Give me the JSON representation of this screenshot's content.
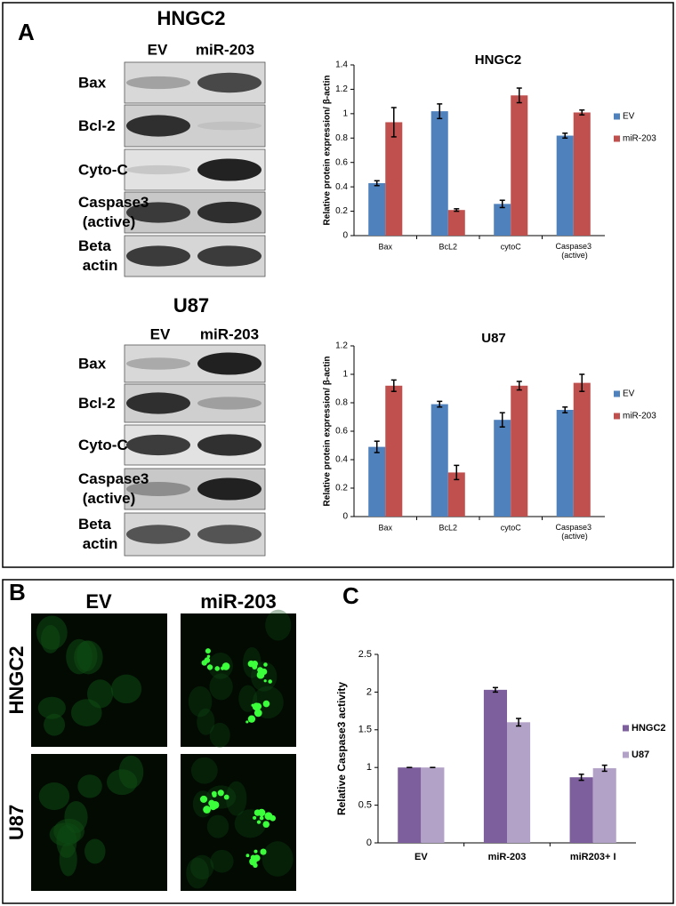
{
  "panel_labels": [
    "A",
    "B",
    "C"
  ],
  "blots": [
    {
      "title": "HNGC2",
      "columns": [
        "EV",
        "miR-203"
      ],
      "rows": [
        "Bax",
        "Bcl-2",
        "Cyto-C",
        "Caspase3 (active)",
        "Beta actin"
      ]
    },
    {
      "title": "U87",
      "columns": [
        "EV",
        "miR-203"
      ],
      "rows": [
        "Bax",
        "Bcl-2",
        "Cyto-C",
        "Caspase3 (active)",
        "Beta actin"
      ]
    }
  ],
  "microscopy": {
    "columns": [
      "EV",
      "miR-203"
    ],
    "rows": [
      "HNGC2",
      "U87"
    ]
  },
  "chart_data": [
    {
      "type": "bar",
      "title": "HNGC2",
      "y_label": "Relative protein expression/ β-actin",
      "categories": [
        "Bax",
        "BcL2",
        "cytoC",
        "Caspase3 (active)"
      ],
      "series": [
        {
          "name": "EV",
          "color": "#4f81bd",
          "values": [
            0.43,
            1.02,
            0.26,
            0.82
          ],
          "errors": [
            0.02,
            0.06,
            0.03,
            0.02
          ]
        },
        {
          "name": "miR-203",
          "color": "#c0504d",
          "values": [
            0.93,
            0.21,
            1.15,
            1.01
          ],
          "errors": [
            0.12,
            0.01,
            0.06,
            0.02
          ]
        }
      ],
      "ylim": [
        0,
        1.4
      ],
      "yticks": [
        0,
        0.2,
        0.4,
        0.6,
        0.8,
        1,
        1.2,
        1.4
      ],
      "legend": "right"
    },
    {
      "type": "bar",
      "title": "U87",
      "y_label": "Relative protein expression/ β-actin",
      "categories": [
        "Bax",
        "BcL2",
        "cytoC",
        "Caspase3 (active)"
      ],
      "series": [
        {
          "name": "EV",
          "color": "#4f81bd",
          "values": [
            0.49,
            0.79,
            0.68,
            0.75
          ],
          "errors": [
            0.04,
            0.02,
            0.05,
            0.02
          ]
        },
        {
          "name": "miR-203",
          "color": "#c0504d",
          "values": [
            0.92,
            0.31,
            0.92,
            0.94
          ],
          "errors": [
            0.04,
            0.05,
            0.03,
            0.06
          ]
        }
      ],
      "ylim": [
        0,
        1.2
      ],
      "yticks": [
        0,
        0.2,
        0.4,
        0.6,
        0.8,
        1,
        1.2
      ],
      "legend": "right"
    },
    {
      "type": "bar",
      "y_label": "Relative Caspase3 activity",
      "categories": [
        "EV",
        "miR-203",
        "miR203+ I"
      ],
      "series": [
        {
          "name": "HNGC2",
          "color": "#7c5f9c",
          "values": [
            1,
            2.03,
            0.87
          ],
          "errors": [
            0,
            0.03,
            0.04
          ]
        },
        {
          "name": "U87",
          "color": "#b3a2c7",
          "values": [
            1,
            1.6,
            0.99
          ],
          "errors": [
            0,
            0.05,
            0.04
          ]
        }
      ],
      "ylim": [
        0,
        2.5
      ],
      "yticks": [
        0,
        0.5,
        1,
        1.5,
        2,
        2.5
      ],
      "legend": "right"
    }
  ]
}
